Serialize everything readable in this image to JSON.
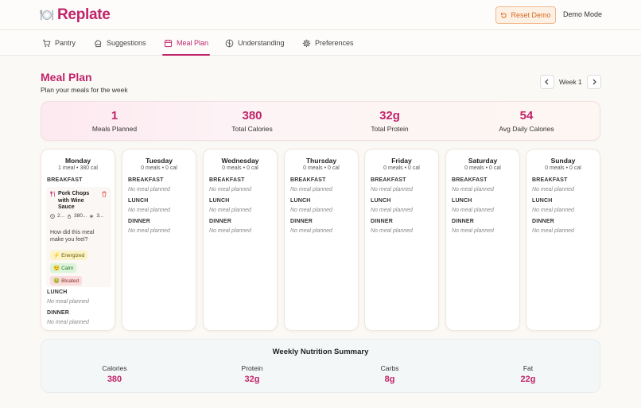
{
  "app": {
    "name": "Replate"
  },
  "header": {
    "reset_label": "Reset Demo",
    "demo_mode": "Demo Mode"
  },
  "nav": {
    "tabs": [
      {
        "label": "Pantry",
        "icon": "cart-icon"
      },
      {
        "label": "Suggestions",
        "icon": "chef-hat-icon"
      },
      {
        "label": "Meal Plan",
        "icon": "calendar-icon",
        "active": true
      },
      {
        "label": "Understanding",
        "icon": "brain-icon"
      },
      {
        "label": "Preferences",
        "icon": "gear-icon"
      }
    ]
  },
  "page": {
    "title": "Meal Plan",
    "subtitle": "Plan your meals for the week",
    "week_label": "Week 1"
  },
  "stats": [
    {
      "value": "1",
      "label": "Meals Planned"
    },
    {
      "value": "380",
      "label": "Total Calories"
    },
    {
      "value": "32g",
      "label": "Total Protein"
    },
    {
      "value": "54",
      "label": "Avg Daily Calories"
    }
  ],
  "meal_labels": {
    "breakfast": "BREAKFAST",
    "lunch": "LUNCH",
    "dinner": "DINNER"
  },
  "empty_text": "No meal planned",
  "days": [
    {
      "name": "Monday",
      "summary": "1 meal • 380 cal"
    },
    {
      "name": "Tuesday",
      "summary": "0 meals • 0 cal"
    },
    {
      "name": "Wednesday",
      "summary": "0 meals • 0 cal"
    },
    {
      "name": "Thursday",
      "summary": "0 meals • 0 cal"
    },
    {
      "name": "Friday",
      "summary": "0 meals • 0 cal"
    },
    {
      "name": "Saturday",
      "summary": "0 meals • 0 cal"
    },
    {
      "name": "Sunday",
      "summary": "0 meals • 0 cal"
    }
  ],
  "monday_meal": {
    "name": "Pork Chops with Wine Sauce",
    "time": "2...",
    "calories": "380...",
    "servings": "3...",
    "feel_question": "How did this meal make you feel?",
    "moods": [
      {
        "emoji": "⚡",
        "label": "Energized"
      },
      {
        "emoji": "😌",
        "label": "Calm"
      },
      {
        "emoji": "🤢",
        "label": "Bloated"
      }
    ]
  },
  "weekly_summary": {
    "title": "Weekly Nutrition Summary",
    "items": [
      {
        "label": "Calories",
        "value": "380"
      },
      {
        "label": "Protein",
        "value": "32g"
      },
      {
        "label": "Carbs",
        "value": "8g"
      },
      {
        "label": "Fat",
        "value": "22g"
      }
    ]
  },
  "colors": {
    "accent": "#c0256a",
    "reset_orange": "#d86b1f"
  }
}
